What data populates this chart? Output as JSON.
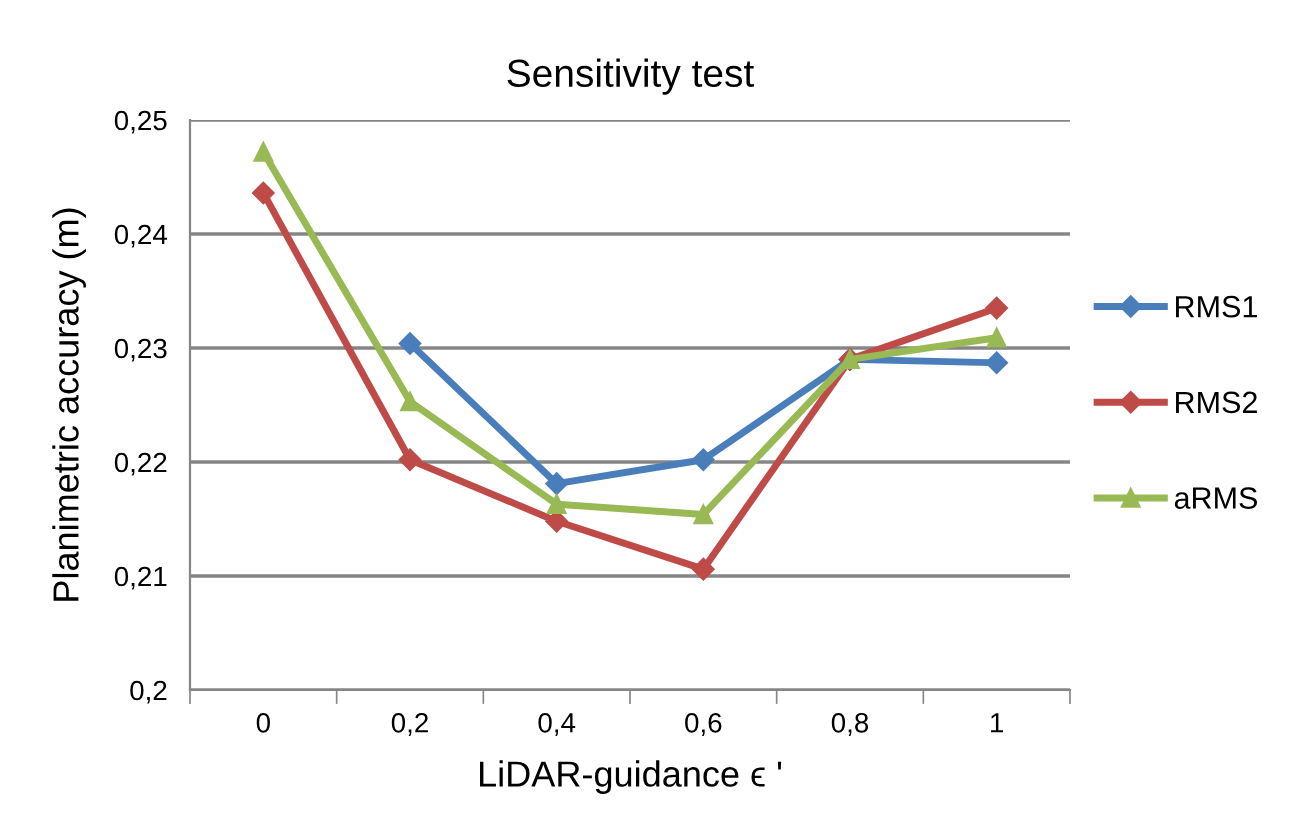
{
  "chart_data": {
    "type": "line",
    "title": "Sensitivity test",
    "xlabel": "LiDAR-guidance ϵ '",
    "ylabel": "Planimetric accuracy (m)",
    "categories": [
      "0",
      "0,2",
      "0,4",
      "0,6",
      "0,8",
      "1"
    ],
    "series": [
      {
        "name": "RMS1",
        "color": "#4a7ebb",
        "marker": "diamond",
        "values": [
          null,
          0.2304,
          0.2181,
          0.2202,
          0.229,
          0.2287
        ]
      },
      {
        "name": "RMS2",
        "color": "#be4b48",
        "marker": "diamond",
        "values": [
          0.2436,
          0.2202,
          0.2148,
          0.2106,
          0.229,
          0.2335
        ]
      },
      {
        "name": "aRMS",
        "color": "#98b954",
        "marker": "triangle",
        "values": [
          0.2472,
          0.2253,
          0.2163,
          0.2154,
          0.229,
          0.2309
        ]
      }
    ],
    "ylim": [
      0.2,
      0.25
    ],
    "yticks": [
      {
        "value": 0.2,
        "label": "0,2"
      },
      {
        "value": 0.21,
        "label": "0,21"
      },
      {
        "value": 0.22,
        "label": "0,22"
      },
      {
        "value": 0.23,
        "label": "0,23"
      },
      {
        "value": 0.24,
        "label": "0,24"
      },
      {
        "value": 0.25,
        "label": "0,25"
      }
    ],
    "grid": "y",
    "legend": "right",
    "line_style": "solid"
  }
}
